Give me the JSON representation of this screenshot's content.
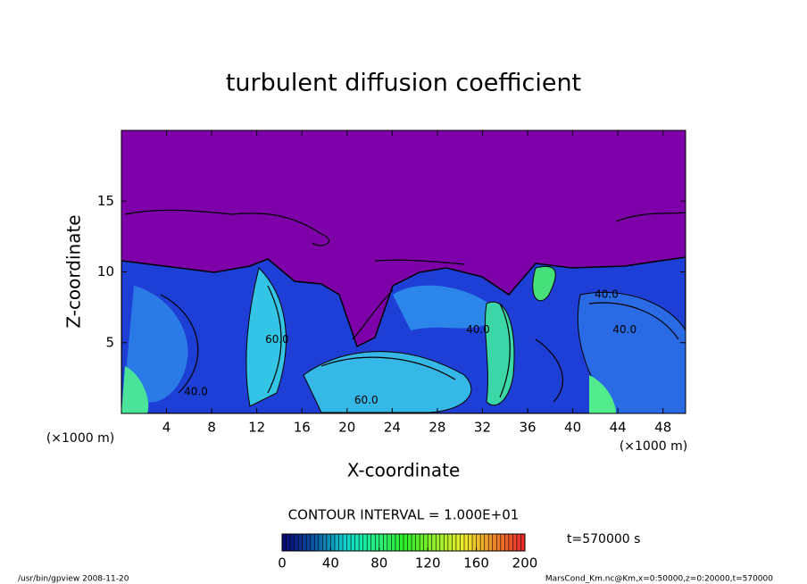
{
  "chart_data": {
    "type": "contour",
    "title": "turbulent diffusion coefficient",
    "x_label": "X-coordinate",
    "y_label": "Z-coordinate",
    "x_unit": "(×1000 m)",
    "y_unit": "(×1000 m)",
    "xlim": [
      0,
      50
    ],
    "ylim": [
      0,
      20
    ],
    "xticks": [
      4,
      8,
      12,
      16,
      20,
      24,
      28,
      32,
      36,
      40,
      44,
      48
    ],
    "yticks": [
      5,
      10,
      15
    ],
    "contour_interval": "CONTOUR INTERVAL = 1.000E+01",
    "contour_labels": [
      {
        "text": "40.0",
        "x": 43,
        "y": 8.4
      },
      {
        "text": "40.0",
        "x": 44.6,
        "y": 5.9
      },
      {
        "text": "60.0",
        "x": 13.8,
        "y": 5.2
      },
      {
        "text": "40.0",
        "x": 6.6,
        "y": 1.5
      },
      {
        "text": "60.0",
        "x": 21.7,
        "y": 0.9
      },
      {
        "text": "40.0",
        "x": 31.6,
        "y": 5.9
      }
    ],
    "colorbar": {
      "clim": [
        0,
        200
      ],
      "ticks": [
        0,
        40,
        80,
        120,
        160,
        200
      ]
    },
    "time_label": "t=570000 s",
    "footer_left": "/usr/bin/gpview   2008-11-20",
    "footer_right": "MarsCond_Km.nc@Km,x=0:50000,z=0:20000,t=570000"
  }
}
